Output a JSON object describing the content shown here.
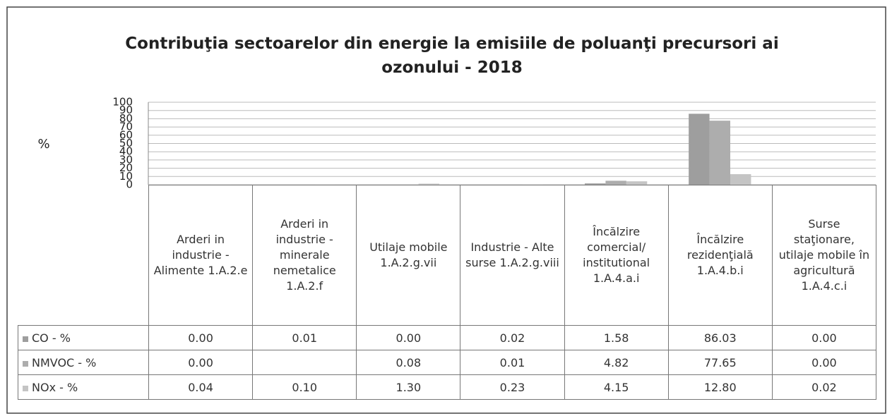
{
  "chart_data": {
    "type": "bar",
    "title": "Contribuţia sectoarelor din energie la emisiile de poluanţi precursori ai ozonului - 2018",
    "ylabel": "%",
    "categories": [
      "Arderi in industrie - Alimente 1.A.2.e",
      "Arderi in industrie - minerale nemetalice 1.A.2.f",
      "Utilaje mobile 1.A.2.g.vii",
      "Industrie - Alte surse 1.A.2.g.viii",
      "Încălzire comercial/ institutional 1.A.4.a.i",
      "Încălzire rezidenţială 1.A.4.b.i",
      "Surse staţionare, utilaje mobile în agricultură 1.A.4.c.i"
    ],
    "series": [
      {
        "name": "CO - %",
        "color": "#9e9e9e",
        "values": [
          0.0,
          0.01,
          0.0,
          0.02,
          1.58,
          86.03,
          0.0
        ],
        "value_labels": [
          "0.00",
          "0.01",
          "0.00",
          "0.02",
          "1.58",
          "86.03",
          "0.00"
        ]
      },
      {
        "name": "NMVOC - %",
        "color": "#adadad",
        "values": [
          0.0,
          null,
          0.08,
          0.01,
          4.82,
          77.65,
          0.0
        ],
        "value_labels": [
          "0.00",
          null,
          "0.08",
          "0.01",
          "4.82",
          "77.65",
          "0.00"
        ]
      },
      {
        "name": "NOx - %",
        "color": "#c4c4c4",
        "values": [
          0.04,
          0.1,
          1.3,
          0.23,
          4.15,
          12.8,
          0.02
        ],
        "value_labels": [
          "0.04",
          "0.10",
          "1.30",
          "0.23",
          "4.15",
          "12.80",
          "0.02"
        ]
      }
    ],
    "ylim": [
      0,
      100
    ],
    "yticks": [
      0,
      10,
      20,
      30,
      40,
      50,
      60,
      70,
      80,
      90,
      100
    ],
    "grid": true
  }
}
